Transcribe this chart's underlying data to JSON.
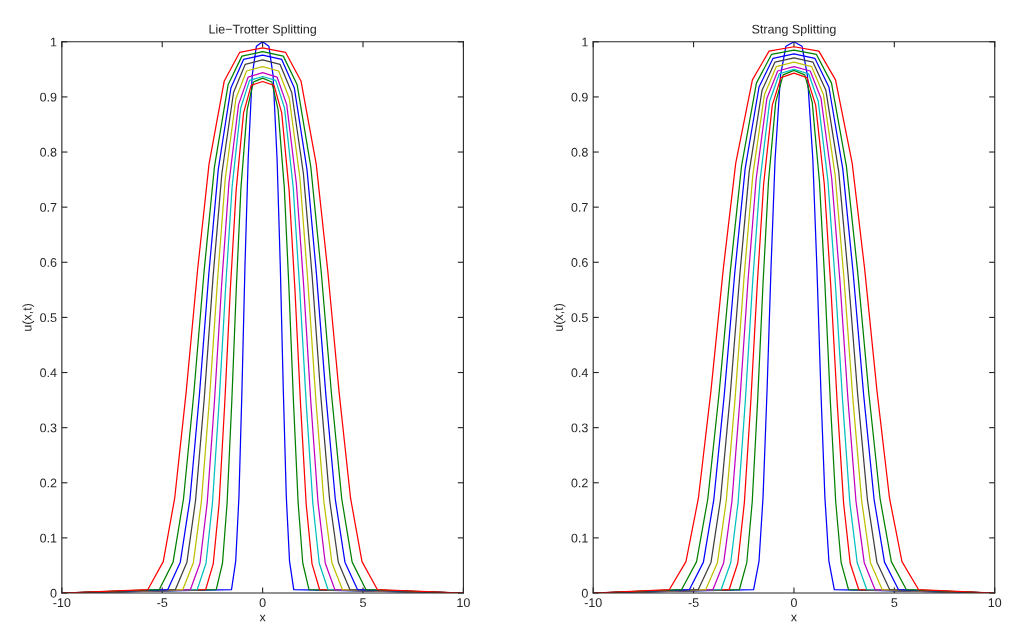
{
  "chart_data": [
    {
      "type": "line",
      "title": "Lie−Trotter Splitting",
      "xlabel": "x",
      "ylabel": "u(x,t)",
      "xlim": [
        -10,
        10
      ],
      "ylim": [
        0,
        1
      ],
      "xticks": [
        -10,
        -5,
        0,
        5,
        10
      ],
      "yticks": [
        0,
        0.1,
        0.2,
        0.3,
        0.4,
        0.5,
        0.6,
        0.7,
        0.8,
        0.9,
        1
      ],
      "grid": false,
      "legend": false,
      "marker": "none",
      "line_style": "solid",
      "series": [
        {
          "color": "#0000ff",
          "x": [
            -10,
            -1.55,
            -1.34,
            -1.18,
            -1.03,
            -0.88,
            -0.72,
            -0.52,
            -0.31,
            0,
            0.31,
            0.52,
            0.72,
            0.88,
            1.03,
            1.18,
            1.34,
            1.55,
            10
          ],
          "values": [
            0,
            0.006,
            0.058,
            0.174,
            0.368,
            0.593,
            0.787,
            0.939,
            0.992,
            1,
            0.992,
            0.939,
            0.787,
            0.593,
            0.368,
            0.174,
            0.058,
            0.006,
            0
          ]
        },
        {
          "color": "#008000",
          "x": [
            -10,
            -2.31,
            -2.0,
            -1.77,
            -1.54,
            -1.31,
            -1.08,
            -0.77,
            -0.46,
            0,
            0.46,
            0.77,
            1.08,
            1.31,
            1.54,
            1.77,
            2.0,
            2.31,
            10
          ],
          "values": [
            0,
            0.006,
            0.054,
            0.163,
            0.344,
            0.554,
            0.735,
            0.877,
            0.927,
            0.934,
            0.927,
            0.877,
            0.735,
            0.554,
            0.344,
            0.163,
            0.054,
            0.006,
            0
          ]
        },
        {
          "color": "#ff0000",
          "x": [
            -10,
            -2.84,
            -2.46,
            -2.17,
            -1.89,
            -1.61,
            -1.32,
            -0.95,
            -0.57,
            0,
            0.57,
            0.95,
            1.32,
            1.61,
            1.89,
            2.17,
            2.46,
            2.84,
            10
          ],
          "values": [
            0,
            0.006,
            0.053,
            0.161,
            0.342,
            0.55,
            0.73,
            0.871,
            0.921,
            0.928,
            0.921,
            0.871,
            0.73,
            0.55,
            0.342,
            0.161,
            0.053,
            0.006,
            0
          ]
        },
        {
          "color": "#00bfbf",
          "x": [
            -10,
            -3.26,
            -2.82,
            -2.5,
            -2.17,
            -1.84,
            -1.52,
            -1.09,
            -0.65,
            0,
            0.65,
            1.09,
            1.52,
            1.84,
            2.17,
            2.5,
            2.82,
            3.26,
            10
          ],
          "values": [
            0,
            0.006,
            0.054,
            0.163,
            0.345,
            0.556,
            0.737,
            0.88,
            0.93,
            0.937,
            0.93,
            0.88,
            0.737,
            0.556,
            0.345,
            0.163,
            0.054,
            0.006,
            0
          ]
        },
        {
          "color": "#bf00bf",
          "x": [
            -10,
            -3.6,
            -3.12,
            -2.76,
            -2.4,
            -2.04,
            -1.68,
            -1.2,
            -0.72,
            0,
            0.72,
            1.2,
            1.68,
            2.04,
            2.4,
            2.76,
            3.12,
            3.6,
            10
          ],
          "values": [
            0,
            0.006,
            0.054,
            0.164,
            0.347,
            0.56,
            0.743,
            0.886,
            0.936,
            0.944,
            0.936,
            0.886,
            0.743,
            0.56,
            0.347,
            0.164,
            0.054,
            0.006,
            0
          ]
        },
        {
          "color": "#bfbf00",
          "x": [
            -10,
            -3.98,
            -3.45,
            -3.05,
            -2.65,
            -2.25,
            -1.86,
            -1.33,
            -0.8,
            0,
            0.8,
            1.33,
            1.86,
            2.25,
            2.65,
            3.05,
            3.45,
            3.98,
            10
          ],
          "values": [
            0,
            0.006,
            0.055,
            0.166,
            0.351,
            0.566,
            0.752,
            0.897,
            0.947,
            0.955,
            0.947,
            0.897,
            0.752,
            0.566,
            0.351,
            0.166,
            0.055,
            0.006,
            0
          ]
        },
        {
          "color": "#404040",
          "x": [
            -10,
            -4.35,
            -3.77,
            -3.34,
            -2.9,
            -2.47,
            -2.03,
            -1.45,
            -0.87,
            0,
            0.87,
            1.45,
            2.03,
            2.47,
            2.9,
            3.34,
            3.77,
            4.35,
            10
          ],
          "values": [
            0,
            0.006,
            0.056,
            0.168,
            0.356,
            0.573,
            0.761,
            0.908,
            0.959,
            0.967,
            0.959,
            0.908,
            0.761,
            0.573,
            0.356,
            0.168,
            0.056,
            0.006,
            0
          ]
        },
        {
          "color": "#0000ff",
          "x": [
            -10,
            -4.73,
            -4.1,
            -3.62,
            -3.15,
            -2.68,
            -2.21,
            -1.58,
            -0.95,
            0,
            0.95,
            1.58,
            2.21,
            2.68,
            3.15,
            3.62,
            4.1,
            4.73,
            10
          ],
          "values": [
            0,
            0.006,
            0.056,
            0.17,
            0.359,
            0.579,
            0.768,
            0.916,
            0.968,
            0.976,
            0.968,
            0.916,
            0.768,
            0.579,
            0.359,
            0.17,
            0.056,
            0.006,
            0
          ]
        },
        {
          "color": "#008000",
          "x": [
            -10,
            -5.15,
            -4.46,
            -3.94,
            -3.43,
            -2.92,
            -2.4,
            -1.72,
            -1.03,
            0,
            1.03,
            1.72,
            2.4,
            2.92,
            3.43,
            3.94,
            4.46,
            5.15,
            10
          ],
          "values": [
            0,
            0.006,
            0.056,
            0.171,
            0.361,
            0.582,
            0.773,
            0.922,
            0.974,
            0.982,
            0.974,
            0.922,
            0.773,
            0.582,
            0.361,
            0.171,
            0.056,
            0.006,
            0
          ]
        },
        {
          "color": "#ff0000",
          "x": [
            -10,
            -5.72,
            -4.95,
            -4.38,
            -3.81,
            -3.24,
            -2.67,
            -1.91,
            -1.14,
            0,
            1.14,
            1.91,
            2.67,
            3.24,
            3.81,
            4.38,
            4.95,
            5.72,
            10
          ],
          "values": [
            0,
            0.006,
            0.057,
            0.172,
            0.364,
            0.586,
            0.778,
            0.929,
            0.981,
            0.989,
            0.981,
            0.929,
            0.778,
            0.586,
            0.364,
            0.172,
            0.057,
            0.006,
            0
          ]
        }
      ]
    },
    {
      "type": "line",
      "title": "Strang Splitting",
      "xlabel": "x",
      "ylabel": "u(x,t)",
      "xlim": [
        -10,
        10
      ],
      "ylim": [
        0,
        1
      ],
      "xticks": [
        -10,
        -5,
        0,
        5,
        10
      ],
      "yticks": [
        0,
        0.1,
        0.2,
        0.3,
        0.4,
        0.5,
        0.6,
        0.7,
        0.8,
        0.9,
        1
      ],
      "grid": false,
      "legend": false,
      "marker": "none",
      "line_style": "solid",
      "series": [
        {
          "color": "#0000ff",
          "x": [
            -10,
            -2.01,
            -1.74,
            -1.54,
            -1.34,
            -1.14,
            -0.94,
            -0.67,
            -0.4,
            0,
            0.4,
            0.67,
            0.94,
            1.14,
            1.34,
            1.54,
            1.74,
            2.01,
            10
          ],
          "values": [
            0,
            0.006,
            0.058,
            0.174,
            0.368,
            0.593,
            0.787,
            0.939,
            0.992,
            1,
            0.992,
            0.939,
            0.787,
            0.593,
            0.368,
            0.174,
            0.058,
            0.006,
            0
          ]
        },
        {
          "color": "#008000",
          "x": [
            -10,
            -2.72,
            -2.35,
            -2.08,
            -1.81,
            -1.54,
            -1.27,
            -0.91,
            -0.54,
            0,
            0.54,
            0.91,
            1.27,
            1.54,
            1.81,
            2.08,
            2.35,
            2.72,
            10
          ],
          "values": [
            0,
            0.006,
            0.055,
            0.165,
            0.349,
            0.562,
            0.746,
            0.89,
            0.94,
            0.948,
            0.94,
            0.89,
            0.746,
            0.562,
            0.349,
            0.165,
            0.055,
            0.006,
            0
          ]
        },
        {
          "color": "#ff0000",
          "x": [
            -10,
            -3.23,
            -2.8,
            -2.47,
            -2.15,
            -1.83,
            -1.51,
            -1.08,
            -0.65,
            0,
            0.65,
            1.08,
            1.51,
            1.83,
            2.15,
            2.47,
            2.8,
            3.23,
            10
          ],
          "values": [
            0,
            0.006,
            0.054,
            0.164,
            0.347,
            0.559,
            0.742,
            0.885,
            0.935,
            0.943,
            0.935,
            0.885,
            0.742,
            0.559,
            0.347,
            0.164,
            0.054,
            0.006,
            0
          ]
        },
        {
          "color": "#00bfbf",
          "x": [
            -10,
            -3.63,
            -3.15,
            -2.78,
            -2.42,
            -2.06,
            -1.69,
            -1.21,
            -0.73,
            0,
            0.73,
            1.21,
            1.69,
            2.06,
            2.42,
            2.78,
            3.15,
            3.63,
            10
          ],
          "values": [
            0,
            0.006,
            0.055,
            0.165,
            0.35,
            0.563,
            0.748,
            0.892,
            0.942,
            0.95,
            0.942,
            0.892,
            0.748,
            0.563,
            0.35,
            0.165,
            0.055,
            0.006,
            0
          ]
        },
        {
          "color": "#bf00bf",
          "x": [
            -10,
            -4.04,
            -3.5,
            -3.09,
            -2.69,
            -2.29,
            -1.88,
            -1.35,
            -0.81,
            0,
            0.81,
            1.35,
            1.88,
            2.29,
            2.69,
            3.09,
            3.5,
            4.04,
            10
          ],
          "values": [
            0,
            0.006,
            0.055,
            0.166,
            0.351,
            0.566,
            0.752,
            0.897,
            0.947,
            0.955,
            0.947,
            0.897,
            0.752,
            0.566,
            0.351,
            0.166,
            0.055,
            0.006,
            0
          ]
        },
        {
          "color": "#bfbf00",
          "x": [
            -10,
            -4.4,
            -3.81,
            -3.37,
            -2.93,
            -2.49,
            -2.05,
            -1.47,
            -0.88,
            0,
            0.88,
            1.47,
            2.05,
            2.49,
            2.93,
            3.37,
            3.81,
            4.4,
            10
          ],
          "values": [
            0,
            0.006,
            0.055,
            0.168,
            0.354,
            0.571,
            0.758,
            0.904,
            0.955,
            0.963,
            0.955,
            0.904,
            0.758,
            0.571,
            0.354,
            0.168,
            0.055,
            0.006,
            0
          ]
        },
        {
          "color": "#404040",
          "x": [
            -10,
            -4.77,
            -4.13,
            -3.66,
            -3.18,
            -2.7,
            -2.23,
            -1.59,
            -0.95,
            0,
            0.95,
            1.59,
            2.23,
            2.7,
            3.18,
            3.66,
            4.13,
            4.77,
            10
          ],
          "values": [
            0,
            0.006,
            0.056,
            0.169,
            0.357,
            0.576,
            0.764,
            0.912,
            0.963,
            0.971,
            0.963,
            0.912,
            0.764,
            0.576,
            0.357,
            0.169,
            0.056,
            0.006,
            0
          ]
        },
        {
          "color": "#0000ff",
          "x": [
            -10,
            -5.21,
            -4.51,
            -3.99,
            -3.47,
            -2.95,
            -2.43,
            -1.74,
            -1.04,
            0,
            1.04,
            1.74,
            2.43,
            2.95,
            3.47,
            3.99,
            4.51,
            5.21,
            10
          ],
          "values": [
            0,
            0.006,
            0.056,
            0.17,
            0.36,
            0.58,
            0.77,
            0.918,
            0.97,
            0.978,
            0.97,
            0.918,
            0.77,
            0.58,
            0.36,
            0.17,
            0.056,
            0.006,
            0
          ]
        },
        {
          "color": "#008000",
          "x": [
            -10,
            -5.6,
            -4.85,
            -4.29,
            -3.73,
            -3.17,
            -2.61,
            -1.87,
            -1.12,
            0,
            1.12,
            1.87,
            2.61,
            3.17,
            3.73,
            4.29,
            4.85,
            5.6,
            10
          ],
          "values": [
            0,
            0.006,
            0.057,
            0.171,
            0.362,
            0.584,
            0.775,
            0.925,
            0.977,
            0.985,
            0.977,
            0.925,
            0.775,
            0.584,
            0.362,
            0.171,
            0.057,
            0.006,
            0
          ]
        },
        {
          "color": "#ff0000",
          "x": [
            -10,
            -6.21,
            -5.38,
            -4.76,
            -4.14,
            -3.52,
            -2.9,
            -2.07,
            -1.24,
            0,
            1.24,
            2.07,
            2.9,
            3.52,
            4.14,
            4.76,
            5.38,
            6.21,
            10
          ],
          "values": [
            0,
            0.006,
            0.057,
            0.172,
            0.365,
            0.588,
            0.78,
            0.931,
            0.983,
            0.991,
            0.983,
            0.931,
            0.78,
            0.588,
            0.365,
            0.172,
            0.057,
            0.006,
            0
          ]
        }
      ]
    }
  ]
}
